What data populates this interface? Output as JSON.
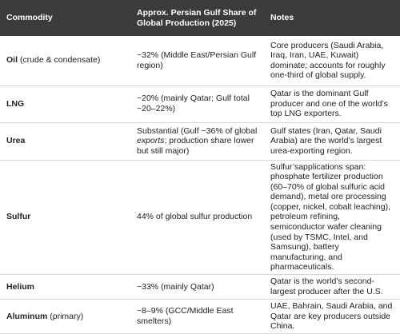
{
  "table": {
    "header": [
      "Commodity",
      "Approx. Persian Gulf Share of Global Production (2025)",
      "Notes"
    ],
    "rows": [
      {
        "commodity": "Oil",
        "qualifier": "(crude & condensate)",
        "share": [
          "~32% (Middle East/Persian Gulf region)"
        ],
        "notes": "Core producers (Saudi Arabia, Iraq, Iran, UAE, Kuwait) dominate; accounts for roughly one-third of global supply."
      },
      {
        "commodity": "LNG",
        "qualifier": null,
        "share": [
          "~20% (mainly Qatar; Gulf total ~20–22%)"
        ],
        "notes": "Qatar is the dominant Gulf producer and one of the world’s top LNG exporters."
      },
      {
        "commodity": "Urea",
        "qualifier": null,
        "share": [
          "Substantial (Gulf ~36% of global ",
          "exports",
          "; production share lower but still major)"
        ],
        "notes": "Gulf states (Iran, Qatar, Saudi Arabia) are the world’s largest urea-exporting region."
      },
      {
        "commodity": "Sulfur",
        "qualifier": null,
        "share": [
          "44% of global sulfur production"
        ],
        "notes": "Sulfur’sapplications span: phosphate fertilizer production (60–70% of global sulfuric acid demand), metal ore processing (copper, nickel, cobalt leaching), petroleum refining, semiconductor wafer cleaning (used by TSMC, Intel, and Samsung), battery manufacturing, and pharmaceuticals."
      },
      {
        "commodity": "Helium",
        "qualifier": null,
        "share": [
          "~33% (mainly Qatar)"
        ],
        "notes": "Qatar is the world’s second-largest producer after the U.S."
      },
      {
        "commodity": "Aluminum",
        "qualifier": "(primary)",
        "share": [
          "~8–9% (GCC/Middle East smelters)"
        ],
        "notes": "UAE, Bahrain, Saudi Arabia, and Qatar are key producers outside China."
      }
    ]
  }
}
